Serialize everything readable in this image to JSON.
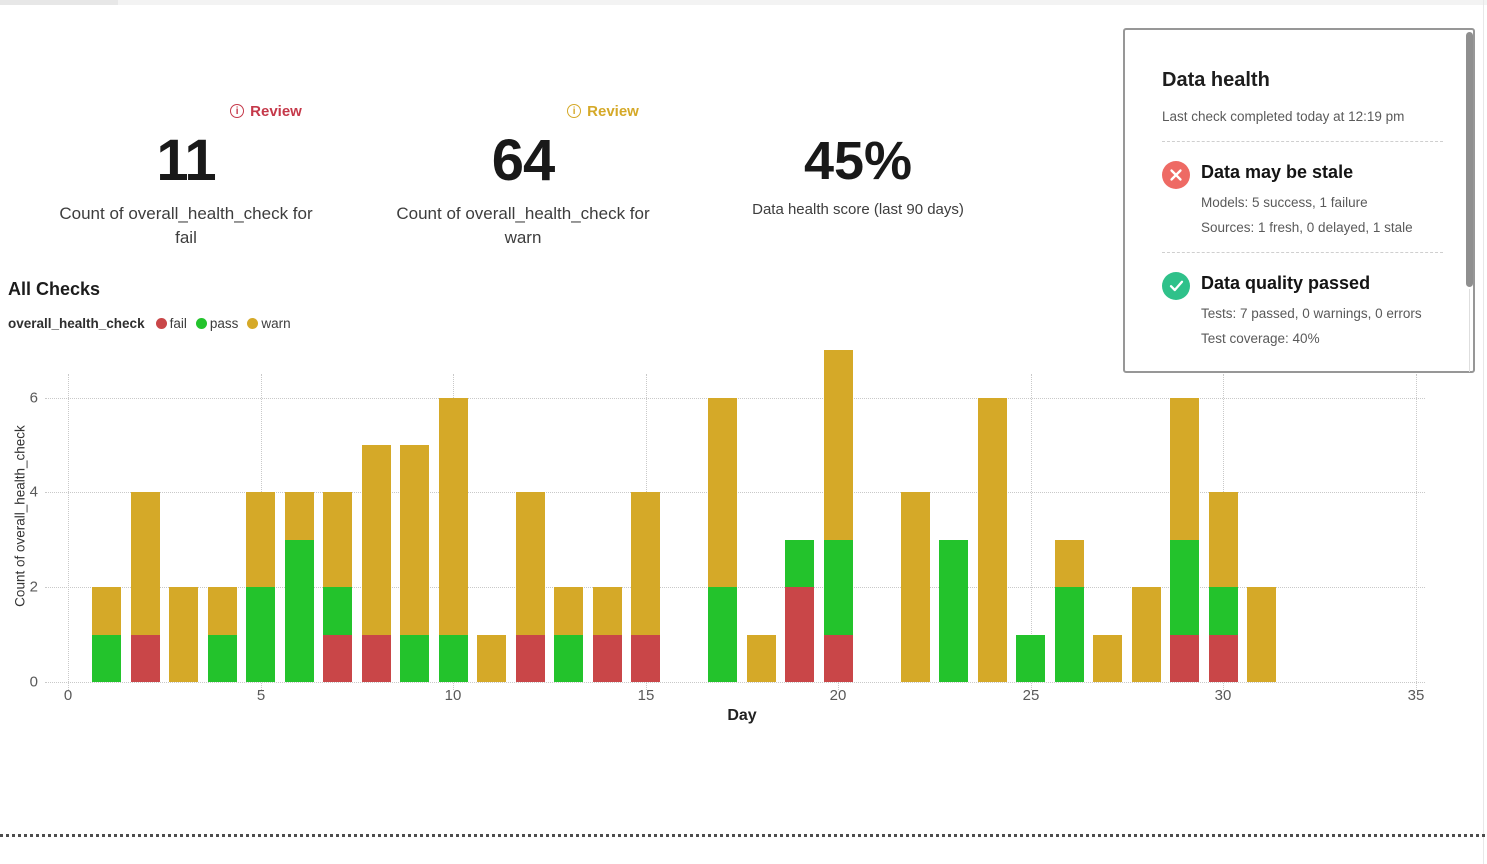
{
  "metrics": [
    {
      "badge": "Review",
      "accent": "#c5394a",
      "value": "11",
      "label": "Count of overall_health_check for fail"
    },
    {
      "badge": "Review",
      "accent": "#d5a928",
      "value": "64",
      "label": "Count of overall_health_check for warn"
    },
    {
      "value": "45%",
      "label": "Data health score (last 90 days)"
    }
  ],
  "chart_section": {
    "title": "All Checks",
    "legend_label": "overall_health_check",
    "legend": [
      {
        "label": "fail",
        "color": "#c94648"
      },
      {
        "label": "pass",
        "color": "#23c32c"
      },
      {
        "label": "warn",
        "color": "#d5a928"
      }
    ]
  },
  "chart_data": {
    "type": "bar",
    "stacked": true,
    "title": "All Checks",
    "xlabel": "Day",
    "ylabel": "Count of overall_health_check",
    "xlim": [
      0,
      35
    ],
    "ylim": [
      0,
      7
    ],
    "x_ticks": [
      0,
      5,
      10,
      15,
      20,
      25,
      30,
      35
    ],
    "y_ticks": [
      0,
      2,
      4,
      6
    ],
    "grid": "dotted",
    "x": [
      1,
      2,
      3,
      4,
      5,
      6,
      7,
      8,
      9,
      10,
      11,
      12,
      13,
      14,
      15,
      16,
      17,
      18,
      19,
      20,
      21,
      22,
      23,
      24,
      25,
      26,
      27,
      28,
      29,
      30,
      31
    ],
    "series": [
      {
        "name": "fail",
        "color": "#c94648",
        "values": [
          0,
          1,
          0,
          0,
          0,
          0,
          1,
          1,
          0,
          0,
          0,
          1,
          0,
          1,
          1,
          0,
          0,
          0,
          2,
          1,
          0,
          0,
          0,
          0,
          0,
          0,
          0,
          0,
          1,
          1,
          0
        ]
      },
      {
        "name": "pass",
        "color": "#23c32c",
        "values": [
          1,
          0,
          0,
          1,
          2,
          3,
          1,
          0,
          1,
          1,
          0,
          0,
          1,
          0,
          0,
          0,
          2,
          0,
          1,
          2,
          0,
          0,
          3,
          0,
          1,
          2,
          0,
          0,
          2,
          1,
          0
        ]
      },
      {
        "name": "warn",
        "color": "#d5a928",
        "values": [
          1,
          3,
          2,
          1,
          2,
          1,
          2,
          4,
          4,
          5,
          1,
          3,
          1,
          1,
          3,
          0,
          4,
          1,
          0,
          4,
          0,
          4,
          0,
          6,
          0,
          1,
          1,
          2,
          3,
          2,
          2
        ]
      }
    ]
  },
  "health_panel": {
    "title": "Data health",
    "subtitle": "Last check completed today at 12:19 pm",
    "items": [
      {
        "icon": "x-circle-icon",
        "color": "#ee6a64",
        "title": "Data may be stale",
        "lines": [
          "Models: 5 success, 1 failure",
          "Sources: 1 fresh, 0 delayed, 1 stale"
        ]
      },
      {
        "icon": "check-circle-icon",
        "color": "#2fc18a",
        "title": "Data quality passed",
        "lines": [
          "Tests: 7 passed, 0 warnings, 0 errors",
          "Test coverage: 40%"
        ]
      }
    ]
  }
}
